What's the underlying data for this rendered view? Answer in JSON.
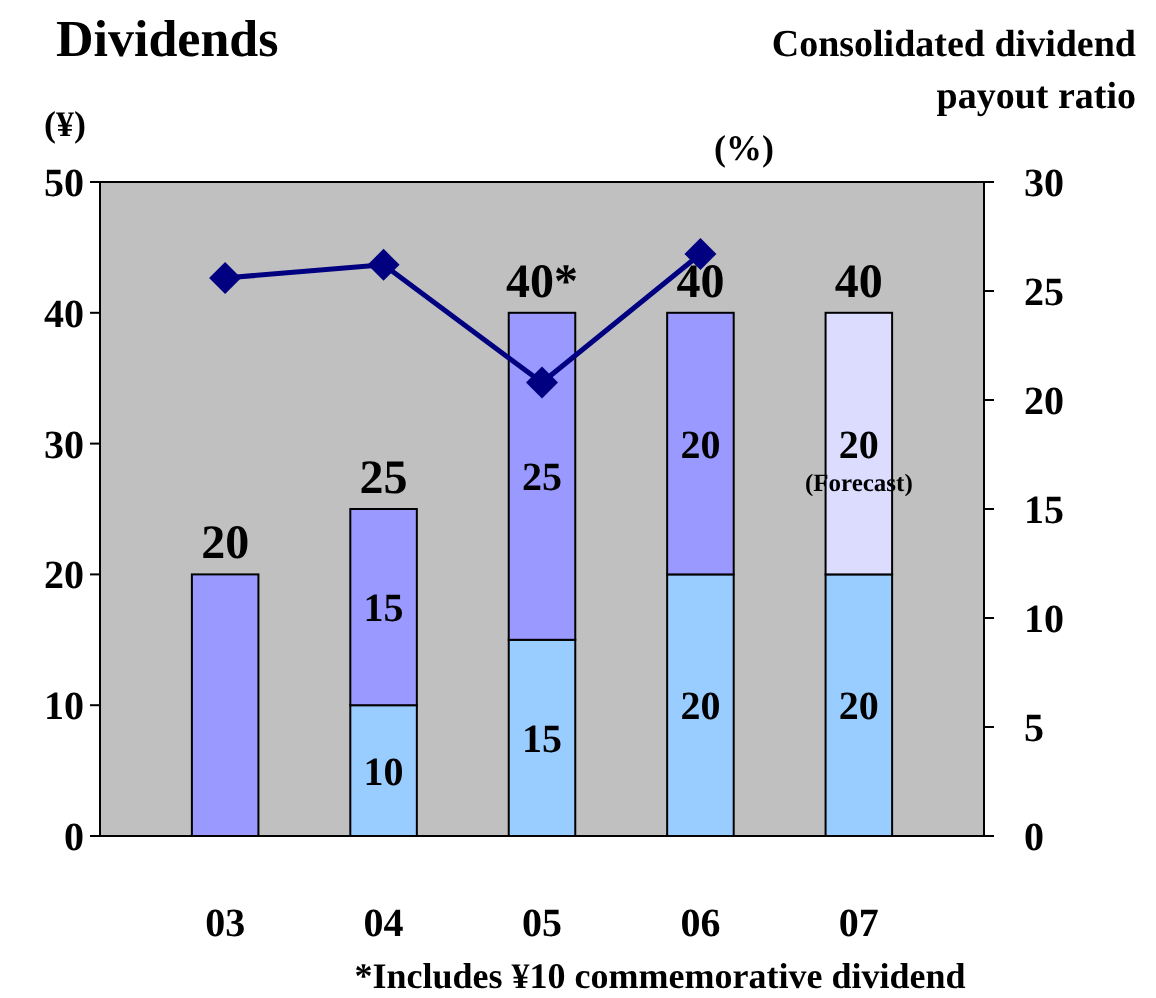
{
  "chart_data": {
    "type": "bar",
    "title": "Dividends",
    "subtitle": "Consolidated dividend payout ratio",
    "ylabel": "(¥)",
    "y2label": "(%)",
    "categories": [
      "03",
      "04",
      "05",
      "06",
      "07"
    ],
    "stacked": true,
    "series": [
      {
        "color": "#99ccff",
        "values": [
          0,
          10,
          15,
          20,
          20
        ],
        "value_labels": [
          null,
          "10",
          "15",
          "20",
          "20"
        ]
      },
      {
        "colors": [
          "#9999ff",
          "#9999ff",
          "#9999ff",
          "#9999ff",
          "#dcdcff"
        ],
        "values": [
          20,
          15,
          25,
          20,
          20
        ],
        "value_labels": [
          null,
          "15",
          "25",
          "20",
          "20"
        ]
      },
      {
        "type": "line",
        "axis": "y2",
        "color": "#000080",
        "marker": "diamond",
        "values": [
          25.6,
          26.2,
          20.8,
          26.7,
          null
        ]
      }
    ],
    "totals": [
      "20",
      "25",
      "40*",
      "40",
      "40"
    ],
    "ylim": [
      0,
      50
    ],
    "yticks": [
      0,
      10,
      20,
      30,
      40,
      50
    ],
    "y2lim": [
      0,
      30
    ],
    "y2ticks": [
      0,
      5,
      10,
      15,
      20,
      25,
      30
    ],
    "grid": false,
    "annotations": [
      "(Forecast)",
      "*Includes ¥10 commemorative dividend"
    ]
  }
}
